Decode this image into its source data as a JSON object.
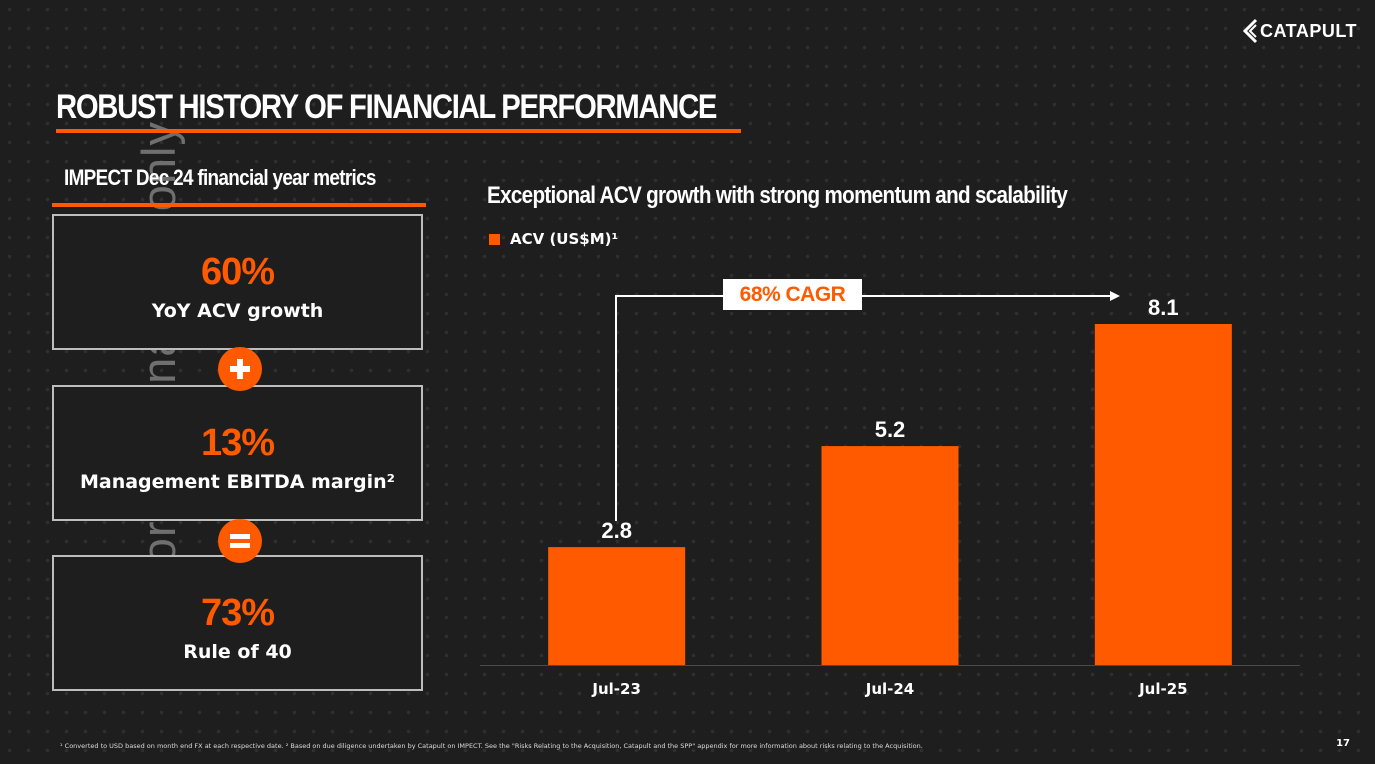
{
  "watermark": "For personal use only",
  "brand": {
    "name": "CATAPULT",
    "accent": "#ff5a00"
  },
  "page_title": "ROBUST HISTORY OF FINANCIAL PERFORMANCE",
  "left_panel": {
    "heading": "IMPECT Dec 24 financial year metrics",
    "metrics": [
      {
        "value": "60%",
        "label": "YoY ACV growth"
      },
      {
        "value": "13%",
        "label": "Management EBITDA margin²"
      },
      {
        "value": "73%",
        "label": "Rule of 40"
      }
    ],
    "operators": [
      "plus-icon",
      "equals-icon"
    ]
  },
  "chart_data": {
    "type": "bar",
    "title": "Exceptional ACV growth with strong momentum and scalability",
    "legend": [
      {
        "name": "ACV (US$M)¹",
        "color": "#ff5a00"
      }
    ],
    "categories": [
      "Jul-23",
      "Jul-24",
      "Jul-25"
    ],
    "series": [
      {
        "name": "ACV (US$M)¹",
        "values": [
          2.8,
          5.2,
          8.1
        ]
      }
    ],
    "data_labels": [
      "2.8",
      "5.2",
      "8.1"
    ],
    "ylim": [
      0,
      9
    ],
    "annotation": "68% CAGR",
    "xlabel": "",
    "ylabel": ""
  },
  "footnote": "¹ Converted to USD based on month end FX at each respective date. ² Based on due diligence undertaken by Catapult on IMPECT. See the \"Risks Relating to the Acquisition, Catapult and the SPP\" appendix for more information about risks relating to the Acquisition.",
  "page_number": "17"
}
